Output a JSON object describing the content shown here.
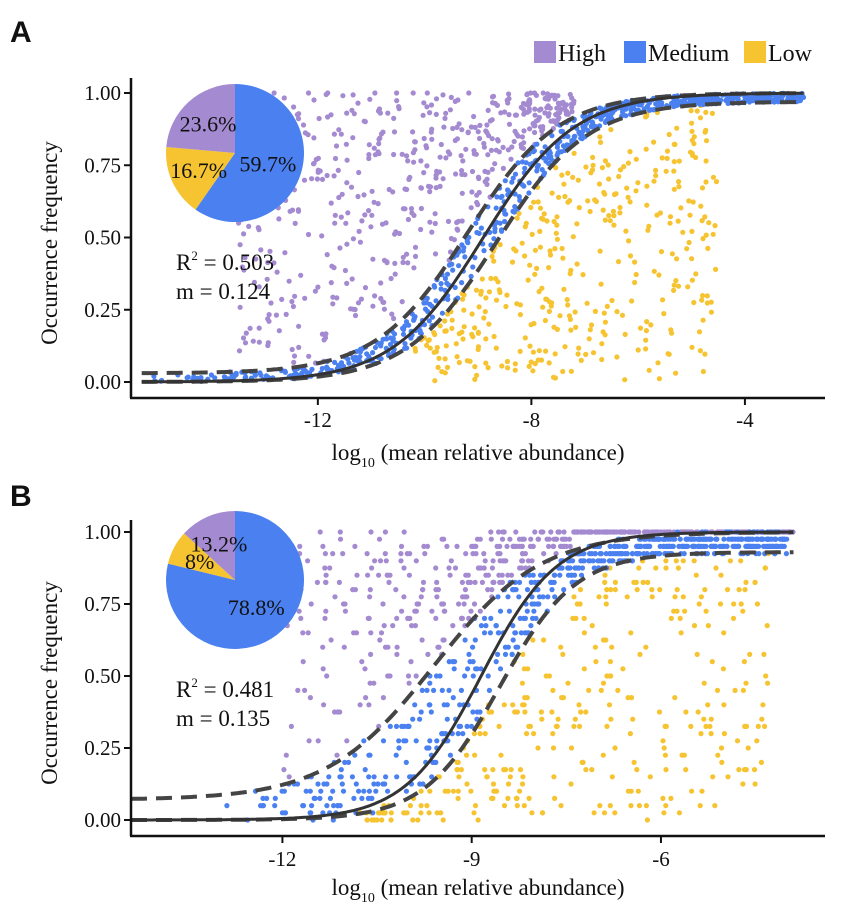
{
  "legend": {
    "items": [
      {
        "label": "High",
        "color": "#A48AD0"
      },
      {
        "label": "Medium",
        "color": "#4A80F0"
      },
      {
        "label": "Low",
        "color": "#F6C331"
      }
    ]
  },
  "chart_data": [
    {
      "type": "scatter",
      "panel": "A",
      "xlabel_main": "log",
      "xlabel_sub": "10",
      "xlabel_rest": " (mean relative abundance)",
      "ylabel": "Occurrence frequency",
      "xlim": [
        -15.5,
        -2.5
      ],
      "ylim": [
        0,
        1.03
      ],
      "x_ticks": [
        -12,
        -8,
        -4
      ],
      "x_tick_labels": [
        "-12",
        "-8",
        "-4"
      ],
      "y_ticks": [
        0,
        0.25,
        0.5,
        0.75,
        1.0
      ],
      "y_tick_labels": [
        "0.00",
        "0.25",
        "0.50",
        "0.75",
        "1.00"
      ],
      "x_min_data": -15.3,
      "x_max_data": -2.9,
      "fit": {
        "center": -8.9,
        "scale": 0.85
      },
      "upper_ci": {
        "center": -9.2,
        "scale": 0.85,
        "max": 1.0,
        "floor": 0.03
      },
      "lower_ci": {
        "center": -8.65,
        "scale": 0.85,
        "max": 0.97,
        "floor": 0.0
      },
      "series": [
        {
          "name": "High",
          "color": "#A48AD0",
          "count": 520,
          "x_range": [
            -13.5,
            -7.2
          ]
        },
        {
          "name": "Medium",
          "color": "#4A80F0",
          "count": 700,
          "x_range": [
            -15.3,
            -2.9
          ]
        },
        {
          "name": "Low",
          "color": "#F6C331",
          "count": 380,
          "x_range": [
            -10.2,
            -4.5
          ]
        }
      ],
      "pie": {
        "slices": [
          {
            "name": "Medium",
            "value": 59.7,
            "label": "59.7%"
          },
          {
            "name": "Low",
            "value": 16.7,
            "label": "16.7%"
          },
          {
            "name": "High",
            "value": 23.6,
            "label": "23.6%"
          }
        ]
      },
      "stats": {
        "r2_prefix": "R",
        "r2_sup": "2",
        "r2_value": " = 0.503",
        "m_text": "m = 0.124"
      }
    },
    {
      "type": "scatter",
      "panel": "B",
      "xlabel_main": "log",
      "xlabel_sub": "10",
      "xlabel_rest": " (mean relative abundance)",
      "ylabel": "Occurrence frequency",
      "xlim": [
        -14.4,
        -3.4
      ],
      "ylim": [
        0,
        1.03
      ],
      "x_ticks": [
        -12,
        -9,
        -6
      ],
      "x_tick_labels": [
        "-12",
        "-9",
        "-6"
      ],
      "y_ticks": [
        0,
        0.25,
        0.5,
        0.75,
        1.0
      ],
      "y_tick_labels": [
        "0.00",
        "0.25",
        "0.50",
        "0.75",
        "1.00"
      ],
      "x_min_data": -14.4,
      "x_max_data": -3.9,
      "fit": {
        "center": -8.85,
        "scale": 0.6
      },
      "upper_ci": {
        "center": -9.6,
        "scale": 0.85,
        "max": 1.0,
        "floor": 0.07
      },
      "lower_ci": {
        "center": -8.55,
        "scale": 0.6,
        "max": 0.93,
        "floor": 0.0
      },
      "series": [
        {
          "name": "High",
          "color": "#A48AD0",
          "count": 480,
          "x_range": [
            -12.0,
            -3.9
          ]
        },
        {
          "name": "Medium",
          "color": "#4A80F0",
          "count": 650,
          "x_range": [
            -13.0,
            -4.0
          ]
        },
        {
          "name": "Low",
          "color": "#F6C331",
          "count": 340,
          "x_range": [
            -10.8,
            -4.3
          ]
        }
      ],
      "pie": {
        "slices": [
          {
            "name": "Medium",
            "value": 78.8,
            "label": "78.8%"
          },
          {
            "name": "Low",
            "value": 8.0,
            "label": "8%"
          },
          {
            "name": "High",
            "value": 13.2,
            "label": "13.2%"
          }
        ]
      },
      "stats": {
        "r2_prefix": "R",
        "r2_sup": "2",
        "r2_value": " = 0.481",
        "m_text": "m = 0.135"
      }
    }
  ]
}
